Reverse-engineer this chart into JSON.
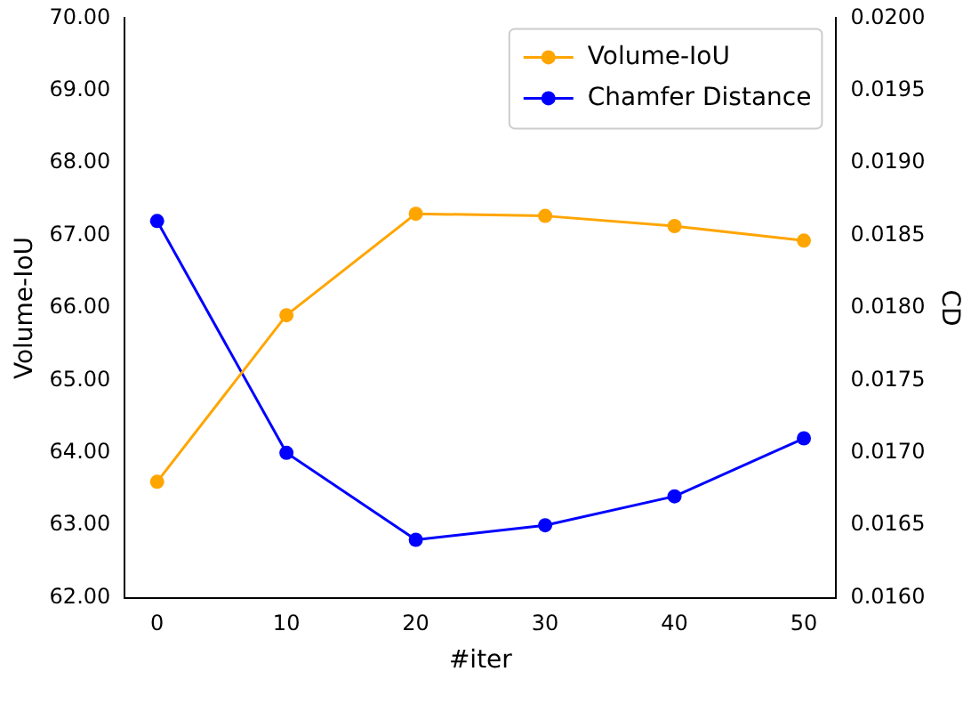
{
  "chart_data": {
    "type": "line",
    "xlabel": "#iter",
    "ylabel": "Volume-IoU",
    "y2label": "CD",
    "x": [
      0,
      10,
      20,
      30,
      40,
      50
    ],
    "series": [
      {
        "name": "Volume-IoU",
        "color": "#ffa500",
        "values": [
          63.6,
          65.9,
          67.3,
          67.27,
          67.13,
          66.93
        ]
      },
      {
        "name": "Chamfer Distance",
        "color": "#0000ff",
        "axis": "y2",
        "values": [
          0.0186,
          0.017,
          0.0164,
          0.0165,
          0.0167,
          0.0171
        ]
      }
    ],
    "xlim": [
      -2.5,
      52.5
    ],
    "xticks": [
      0,
      10,
      20,
      30,
      40,
      50
    ],
    "ylim": [
      62,
      70
    ],
    "yticks": [
      {
        "value": 62,
        "label": "62.00"
      },
      {
        "value": 63,
        "label": "63.00"
      },
      {
        "value": 64,
        "label": "64.00"
      },
      {
        "value": 65,
        "label": "65.00"
      },
      {
        "value": 66,
        "label": "66.00"
      },
      {
        "value": 67,
        "label": "67.00"
      },
      {
        "value": 68,
        "label": "68.00"
      },
      {
        "value": 69,
        "label": "69.00"
      },
      {
        "value": 70,
        "label": "70.00"
      }
    ],
    "y2lim": [
      0.016,
      0.02
    ],
    "y2ticks": [
      {
        "value": 0.016,
        "label": "0.0160"
      },
      {
        "value": 0.0165,
        "label": "0.0165"
      },
      {
        "value": 0.017,
        "label": "0.0170"
      },
      {
        "value": 0.0175,
        "label": "0.0175"
      },
      {
        "value": 0.018,
        "label": "0.0180"
      },
      {
        "value": 0.0185,
        "label": "0.0185"
      },
      {
        "value": 0.019,
        "label": "0.0190"
      },
      {
        "value": 0.0195,
        "label": "0.0195"
      },
      {
        "value": 0.02,
        "label": "0.0200"
      }
    ],
    "legend": "top right",
    "marker": "circle",
    "line_style": "solid",
    "grid": false
  }
}
